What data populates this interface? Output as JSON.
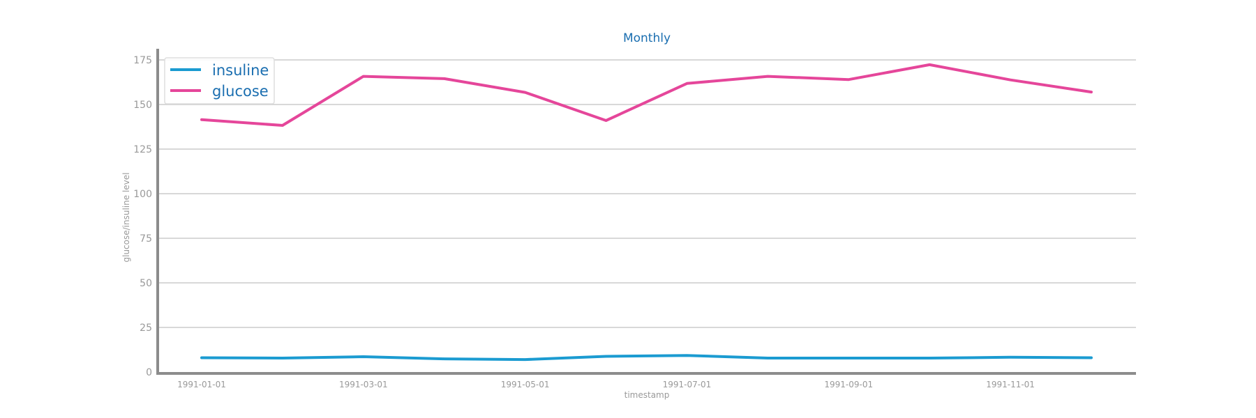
{
  "colors": {
    "title": "#1a6eb0",
    "axis_text": "#999999",
    "grid": "#cccccc",
    "axis_line": "#8c8c8c",
    "legend_border": "#dddddd",
    "legend_text": "#1a6eb0"
  },
  "chart_data": {
    "type": "line",
    "title": "Monthly",
    "xlabel": "timestamp",
    "ylabel": "glucose/insuline level",
    "ylim": [
      0,
      175
    ],
    "y_ticks": [
      "0",
      "25",
      "50",
      "75",
      "100",
      "125",
      "150",
      "175"
    ],
    "grid": true,
    "legend_position": "upper-left",
    "x": [
      "1991-01-01",
      "1991-02-01",
      "1991-03-01",
      "1991-04-01",
      "1991-05-01",
      "1991-06-01",
      "1991-07-01",
      "1991-08-01",
      "1991-09-01",
      "1991-10-01",
      "1991-11-01",
      "1991-12-01"
    ],
    "x_ticks": [
      "1991-01-01",
      "1991-03-01",
      "1991-05-01",
      "1991-07-01",
      "1991-09-01",
      "1991-11-01"
    ],
    "series": [
      {
        "name": "insuline",
        "color": "#1b9bd1",
        "values": [
          8.0,
          7.8,
          8.6,
          7.4,
          7.0,
          8.8,
          9.3,
          7.8,
          7.8,
          7.8,
          8.3,
          8.0
        ]
      },
      {
        "name": "glucose",
        "color": "#e5469a",
        "values": [
          141.5,
          138.3,
          165.8,
          164.5,
          156.8,
          141.0,
          161.8,
          165.8,
          164.0,
          172.3,
          163.8,
          157.0
        ]
      }
    ]
  }
}
